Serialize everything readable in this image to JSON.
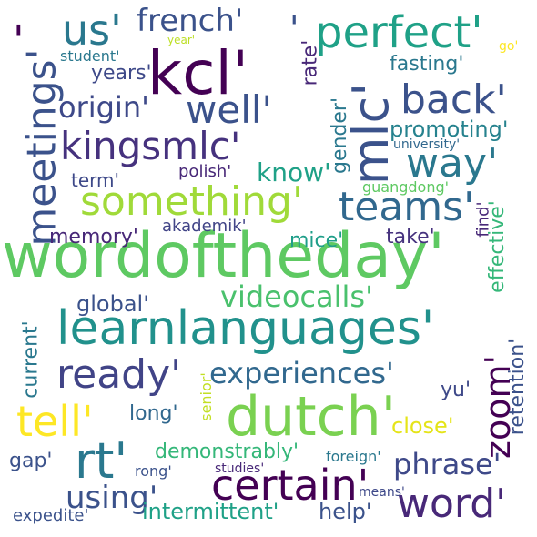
{
  "words": [
    {
      "text": "wordoftheday'",
      "color": "#5ec962"
    },
    {
      "text": "learnlanguages'",
      "color": "#21918c"
    },
    {
      "text": "dutch'",
      "color": "#7ad151"
    },
    {
      "text": "kcl'",
      "color": "#440154"
    },
    {
      "text": "perfect'",
      "color": "#1fa187"
    },
    {
      "text": "mlc'",
      "color": "#3b528b"
    },
    {
      "text": "meetings'",
      "color": "#3b528b"
    },
    {
      "text": "kingsmlc'",
      "color": "#46327e"
    },
    {
      "text": "something'",
      "color": "#a0da39"
    },
    {
      "text": "teams'",
      "color": "#31688e"
    },
    {
      "text": "back'",
      "color": "#3b528b"
    },
    {
      "text": "way'",
      "color": "#2a788e"
    },
    {
      "text": "well'",
      "color": "#3b528b"
    },
    {
      "text": "us'",
      "color": "#2a788e"
    },
    {
      "text": "french'",
      "color": "#3b528b"
    },
    {
      "text": "videocalls'",
      "color": "#4ac16d"
    },
    {
      "text": "ready'",
      "color": "#414487"
    },
    {
      "text": "experiences'",
      "color": "#31688e"
    },
    {
      "text": "zoom'",
      "color": "#440154"
    },
    {
      "text": "tell'",
      "color": "#fde725"
    },
    {
      "text": "rt'",
      "color": "#2a788e"
    },
    {
      "text": "certain'",
      "color": "#440154"
    },
    {
      "text": "word'",
      "color": "#482878"
    },
    {
      "text": "phrase'",
      "color": "#3e4989"
    },
    {
      "text": "using'",
      "color": "#3b528b"
    },
    {
      "text": "origin'",
      "color": "#3e4989"
    },
    {
      "text": "know'",
      "color": "#1fa187"
    },
    {
      "text": "promoting'",
      "color": "#26828e"
    },
    {
      "text": "fasting'",
      "color": "#2a788e"
    },
    {
      "text": "years'",
      "color": "#3e4989"
    },
    {
      "text": "rate'",
      "color": "#482878"
    },
    {
      "text": "gender'",
      "color": "#2a788e"
    },
    {
      "text": "student'",
      "color": "#2a788e"
    },
    {
      "text": "year'",
      "color": "#bddf26"
    },
    {
      "text": "go'",
      "color": "#fde725"
    },
    {
      "text": "university'",
      "color": "#31688e"
    },
    {
      "text": "polish'",
      "color": "#482878"
    },
    {
      "text": "term'",
      "color": "#3e4989"
    },
    {
      "text": "guangdong'",
      "color": "#5ec962"
    },
    {
      "text": "find'",
      "color": "#482878"
    },
    {
      "text": "effective'",
      "color": "#35b779"
    },
    {
      "text": "memory'",
      "color": "#482878"
    },
    {
      "text": "akademik'",
      "color": "#414487"
    },
    {
      "text": "mice'",
      "color": "#1f9e89"
    },
    {
      "text": "take'",
      "color": "#46327e"
    },
    {
      "text": "global'",
      "color": "#3b528b"
    },
    {
      "text": "current'",
      "color": "#2a788e"
    },
    {
      "text": "retention'",
      "color": "#3b528b"
    },
    {
      "text": "long'",
      "color": "#31688e"
    },
    {
      "text": "senior'",
      "color": "#c2df23"
    },
    {
      "text": "yu'",
      "color": "#3e4989"
    },
    {
      "text": "close'",
      "color": "#e5e419"
    },
    {
      "text": "demonstrably'",
      "color": "#35b779"
    },
    {
      "text": "gap'",
      "color": "#3b528b"
    },
    {
      "text": "rong'",
      "color": "#3b528b"
    },
    {
      "text": "studies'",
      "color": "#482878"
    },
    {
      "text": "foreign'",
      "color": "#2a788e"
    },
    {
      "text": "means'",
      "color": "#3e4989"
    },
    {
      "text": "intermittent'",
      "color": "#1fa187"
    },
    {
      "text": "help'",
      "color": "#3b528b"
    },
    {
      "text": "expedite'",
      "color": "#3b528b"
    },
    {
      "text": "'",
      "color": "#440154"
    },
    {
      "text": "'",
      "color": "#3b528b"
    }
  ]
}
